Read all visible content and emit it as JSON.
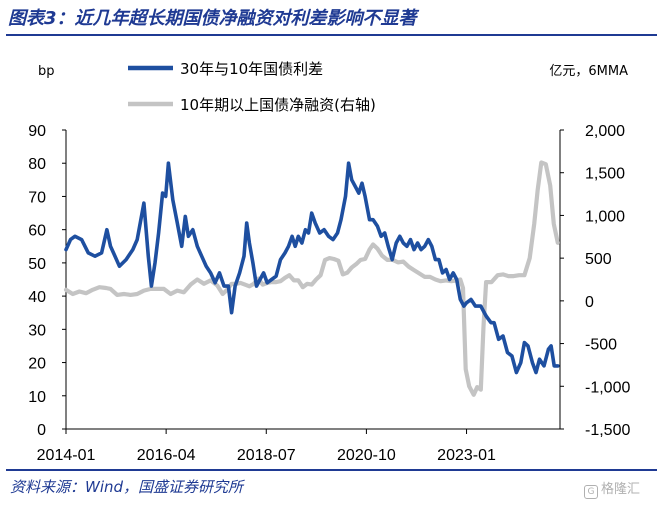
{
  "header": {
    "title": "图表3：近几年超长期国债净融资对利差影响不显著"
  },
  "footer": {
    "source": "资料来源：Wind，国盛证券研究所",
    "watermark": "格隆汇"
  },
  "chart_data": {
    "type": "line",
    "left_unit": "bp",
    "right_unit": "亿元，6MMA",
    "x_tick_labels": [
      "2014-01",
      "2016-04",
      "2018-07",
      "2020-10",
      "2023-01"
    ],
    "ylim_left": [
      0,
      90
    ],
    "yticks_left": [
      "0",
      "10",
      "20",
      "30",
      "40",
      "50",
      "60",
      "70",
      "80",
      "90"
    ],
    "ylim_right": [
      -1500,
      2000
    ],
    "yticks_right": [
      "-1,500",
      "-1,000",
      "-500",
      "0",
      "500",
      "1,000",
      "1,500",
      "2,000"
    ],
    "legend_position": "top",
    "series": [
      {
        "name": "30年与10年国债利差",
        "axis": "left",
        "color": "#1e4fa0",
        "values": [
          [
            2014.0,
            54
          ],
          [
            2014.1,
            57
          ],
          [
            2014.2,
            58
          ],
          [
            2014.35,
            57
          ],
          [
            2014.5,
            53
          ],
          [
            2014.65,
            52
          ],
          [
            2014.8,
            53
          ],
          [
            2014.92,
            60
          ],
          [
            2015.0,
            55
          ],
          [
            2015.1,
            52
          ],
          [
            2015.2,
            49
          ],
          [
            2015.35,
            51
          ],
          [
            2015.5,
            54
          ],
          [
            2015.6,
            57
          ],
          [
            2015.75,
            68
          ],
          [
            2015.85,
            52
          ],
          [
            2015.92,
            43
          ],
          [
            2016.0,
            50
          ],
          [
            2016.08,
            59
          ],
          [
            2016.17,
            71
          ],
          [
            2016.24,
            70
          ],
          [
            2016.3,
            80
          ],
          [
            2016.4,
            69
          ],
          [
            2016.5,
            62
          ],
          [
            2016.6,
            55
          ],
          [
            2016.68,
            64
          ],
          [
            2016.75,
            58
          ],
          [
            2016.85,
            60
          ],
          [
            2016.95,
            55
          ],
          [
            2017.05,
            52
          ],
          [
            2017.15,
            49
          ],
          [
            2017.25,
            47
          ],
          [
            2017.35,
            44
          ],
          [
            2017.45,
            47
          ],
          [
            2017.55,
            43
          ],
          [
            2017.65,
            43
          ],
          [
            2017.72,
            35
          ],
          [
            2017.8,
            43
          ],
          [
            2017.9,
            47
          ],
          [
            2018.0,
            52
          ],
          [
            2018.06,
            62
          ],
          [
            2018.12,
            56
          ],
          [
            2018.2,
            50
          ],
          [
            2018.28,
            43
          ],
          [
            2018.36,
            45
          ],
          [
            2018.44,
            47
          ],
          [
            2018.52,
            44
          ],
          [
            2018.62,
            45
          ],
          [
            2018.72,
            46
          ],
          [
            2018.82,
            51
          ],
          [
            2018.92,
            53
          ],
          [
            2019.0,
            55
          ],
          [
            2019.08,
            58
          ],
          [
            2019.15,
            55
          ],
          [
            2019.22,
            58
          ],
          [
            2019.3,
            56
          ],
          [
            2019.38,
            60
          ],
          [
            2019.45,
            59
          ],
          [
            2019.52,
            65
          ],
          [
            2019.6,
            62
          ],
          [
            2019.7,
            59
          ],
          [
            2019.8,
            60
          ],
          [
            2019.9,
            58
          ],
          [
            2020.0,
            57
          ],
          [
            2020.1,
            59
          ],
          [
            2020.18,
            63
          ],
          [
            2020.28,
            70
          ],
          [
            2020.35,
            80
          ],
          [
            2020.42,
            75
          ],
          [
            2020.5,
            73
          ],
          [
            2020.58,
            71
          ],
          [
            2020.65,
            74
          ],
          [
            2020.72,
            70
          ],
          [
            2020.82,
            63
          ],
          [
            2020.9,
            63
          ],
          [
            2021.0,
            61
          ],
          [
            2021.08,
            58
          ],
          [
            2021.16,
            59
          ],
          [
            2021.24,
            55
          ],
          [
            2021.33,
            51
          ],
          [
            2021.42,
            56
          ],
          [
            2021.5,
            58
          ],
          [
            2021.58,
            56
          ],
          [
            2021.66,
            55
          ],
          [
            2021.74,
            57
          ],
          [
            2021.82,
            54
          ],
          [
            2021.9,
            56
          ],
          [
            2021.98,
            54
          ],
          [
            2022.06,
            55
          ],
          [
            2022.14,
            57
          ],
          [
            2022.22,
            55
          ],
          [
            2022.3,
            51
          ],
          [
            2022.38,
            51
          ],
          [
            2022.46,
            47
          ],
          [
            2022.54,
            48
          ],
          [
            2022.62,
            45
          ],
          [
            2022.7,
            47
          ],
          [
            2022.78,
            45
          ],
          [
            2022.86,
            39
          ],
          [
            2022.94,
            37
          ],
          [
            2023.0,
            38
          ],
          [
            2023.1,
            39
          ],
          [
            2023.2,
            37
          ],
          [
            2023.32,
            37
          ],
          [
            2023.44,
            34
          ],
          [
            2023.55,
            32
          ],
          [
            2023.62,
            32
          ],
          [
            2023.72,
            27
          ],
          [
            2023.82,
            28
          ],
          [
            2023.92,
            23
          ],
          [
            2024.02,
            22
          ],
          [
            2024.12,
            17
          ],
          [
            2024.22,
            20
          ],
          [
            2024.3,
            26
          ],
          [
            2024.38,
            25
          ],
          [
            2024.48,
            20
          ],
          [
            2024.56,
            17
          ],
          [
            2024.64,
            21
          ],
          [
            2024.74,
            19
          ],
          [
            2024.84,
            24
          ],
          [
            2024.9,
            25
          ],
          [
            2024.97,
            19
          ],
          [
            2025.05,
            19
          ]
        ]
      },
      {
        "name": "10年期以上国债净融资(右轴)",
        "axis": "right",
        "color": "#c4c4c4",
        "values": [
          [
            2014.0,
            130
          ],
          [
            2014.15,
            80
          ],
          [
            2014.3,
            110
          ],
          [
            2014.45,
            90
          ],
          [
            2014.6,
            130
          ],
          [
            2014.75,
            160
          ],
          [
            2014.9,
            150
          ],
          [
            2015.0,
            140
          ],
          [
            2015.15,
            70
          ],
          [
            2015.3,
            80
          ],
          [
            2015.45,
            70
          ],
          [
            2015.6,
            80
          ],
          [
            2015.75,
            120
          ],
          [
            2015.9,
            140
          ],
          [
            2016.05,
            140
          ],
          [
            2016.2,
            140
          ],
          [
            2016.35,
            80
          ],
          [
            2016.5,
            120
          ],
          [
            2016.65,
            100
          ],
          [
            2016.8,
            190
          ],
          [
            2016.95,
            250
          ],
          [
            2017.1,
            200
          ],
          [
            2017.25,
            240
          ],
          [
            2017.4,
            180
          ],
          [
            2017.52,
            80
          ],
          [
            2017.62,
            130
          ],
          [
            2017.72,
            200
          ],
          [
            2017.82,
            200
          ],
          [
            2017.92,
            210
          ],
          [
            2018.02,
            190
          ],
          [
            2018.12,
            170
          ],
          [
            2018.22,
            200
          ],
          [
            2018.32,
            260
          ],
          [
            2018.42,
            190
          ],
          [
            2018.52,
            210
          ],
          [
            2018.62,
            220
          ],
          [
            2018.72,
            220
          ],
          [
            2018.82,
            230
          ],
          [
            2018.92,
            270
          ],
          [
            2019.02,
            300
          ],
          [
            2019.12,
            240
          ],
          [
            2019.22,
            240
          ],
          [
            2019.32,
            160
          ],
          [
            2019.42,
            200
          ],
          [
            2019.52,
            190
          ],
          [
            2019.62,
            250
          ],
          [
            2019.72,
            300
          ],
          [
            2019.82,
            480
          ],
          [
            2019.92,
            500
          ],
          [
            2020.02,
            490
          ],
          [
            2020.12,
            470
          ],
          [
            2020.22,
            310
          ],
          [
            2020.32,
            330
          ],
          [
            2020.42,
            390
          ],
          [
            2020.52,
            430
          ],
          [
            2020.62,
            480
          ],
          [
            2020.72,
            490
          ],
          [
            2020.82,
            600
          ],
          [
            2020.9,
            660
          ],
          [
            2021.0,
            610
          ],
          [
            2021.1,
            530
          ],
          [
            2021.22,
            480
          ],
          [
            2021.34,
            480
          ],
          [
            2021.46,
            450
          ],
          [
            2021.58,
            460
          ],
          [
            2021.7,
            400
          ],
          [
            2021.82,
            360
          ],
          [
            2021.94,
            320
          ],
          [
            2022.06,
            280
          ],
          [
            2022.18,
            280
          ],
          [
            2022.3,
            250
          ],
          [
            2022.42,
            230
          ],
          [
            2022.54,
            240
          ],
          [
            2022.66,
            230
          ],
          [
            2022.78,
            240
          ],
          [
            2022.86,
            250
          ],
          [
            2022.92,
            150
          ],
          [
            2022.98,
            -800
          ],
          [
            2023.06,
            -1000
          ],
          [
            2023.16,
            -1100
          ],
          [
            2023.24,
            -1010
          ],
          [
            2023.32,
            -1040
          ],
          [
            2023.38,
            -300
          ],
          [
            2023.44,
            220
          ],
          [
            2023.56,
            220
          ],
          [
            2023.7,
            300
          ],
          [
            2023.82,
            310
          ],
          [
            2023.94,
            290
          ],
          [
            2024.06,
            290
          ],
          [
            2024.18,
            300
          ],
          [
            2024.3,
            300
          ],
          [
            2024.42,
            500
          ],
          [
            2024.52,
            900
          ],
          [
            2024.6,
            1300
          ],
          [
            2024.68,
            1620
          ],
          [
            2024.78,
            1600
          ],
          [
            2024.88,
            1350
          ],
          [
            2024.96,
            900
          ],
          [
            2025.05,
            680
          ]
        ]
      }
    ]
  }
}
